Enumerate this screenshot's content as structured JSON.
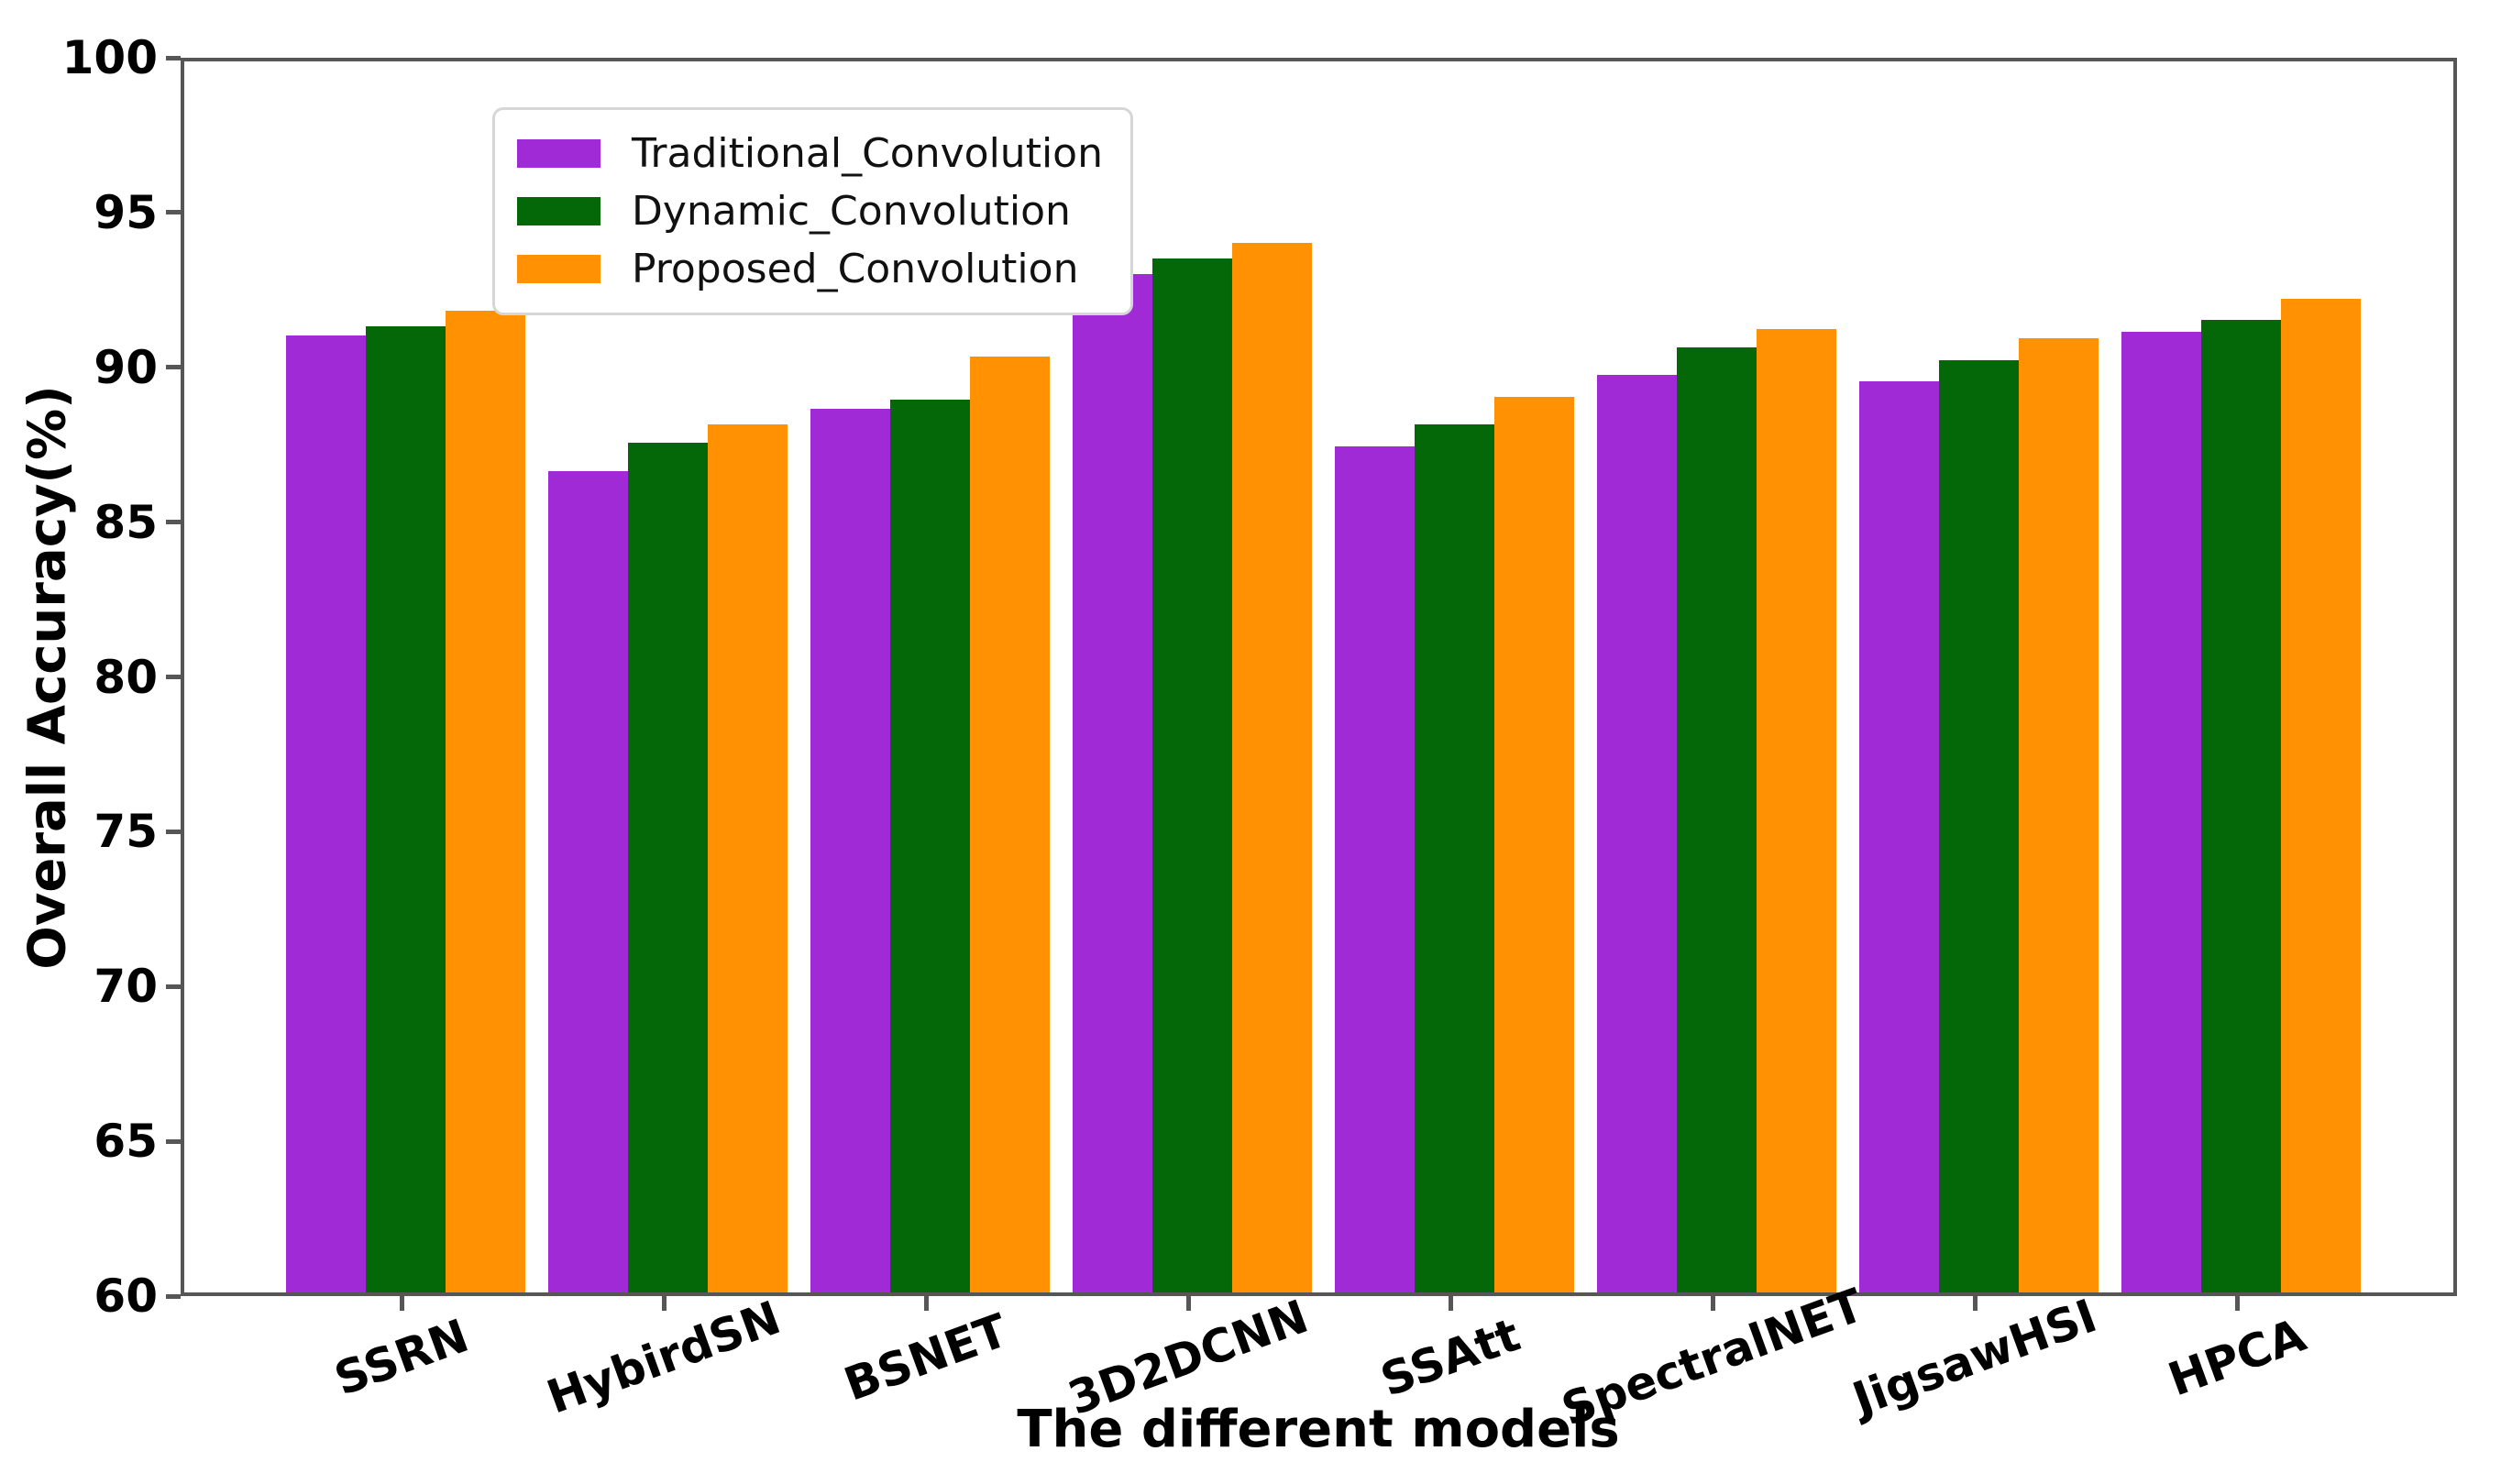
{
  "chart_data": {
    "type": "bar",
    "title": "",
    "xlabel": "The different models",
    "ylabel": "Overall Accuracy(%)",
    "ylim": [
      60,
      100
    ],
    "yticks": [
      60,
      65,
      70,
      75,
      80,
      85,
      90,
      95,
      100
    ],
    "grid": false,
    "legend_position": "upper-left-inside",
    "categories": [
      "SSRN",
      "HybirdSN",
      "BSNET",
      "3D2DCNN",
      "SSAtt",
      "SpectralNET",
      "JigsawHSI",
      "HPCA"
    ],
    "series": [
      {
        "name": "Traditional_Convolution",
        "color": "#A02BD6",
        "values": [
          91.1,
          86.7,
          88.7,
          93.1,
          87.5,
          89.8,
          89.6,
          91.2
        ]
      },
      {
        "name": "Dynamic_Convolution",
        "color": "#046708",
        "values": [
          91.4,
          87.6,
          89.0,
          93.6,
          88.2,
          90.7,
          90.3,
          91.6
        ]
      },
      {
        "name": "Proposed_Convolution",
        "color": "#FF9103",
        "values": [
          91.9,
          88.2,
          90.4,
          94.1,
          89.1,
          91.3,
          91.0,
          92.3
        ]
      }
    ],
    "axis_color": "#565656"
  }
}
